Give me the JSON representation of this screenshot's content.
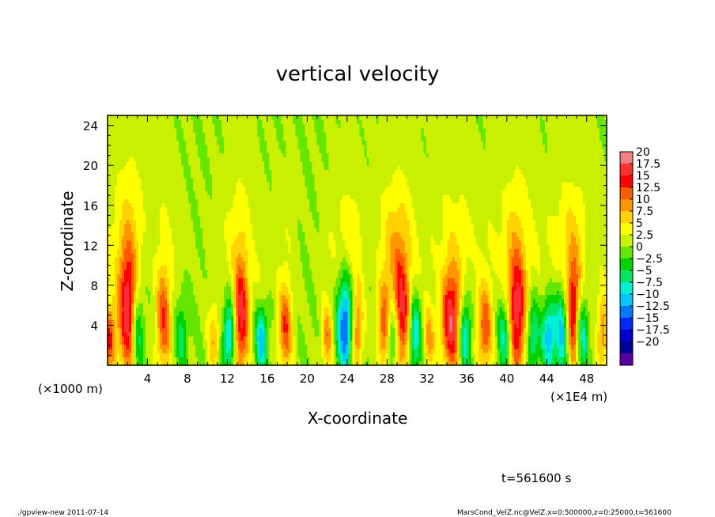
{
  "chart_data": {
    "type": "heatmap",
    "title": "vertical velocity",
    "xlabel": "X-coordinate",
    "ylabel": "Z-coordinate",
    "x_unit_left": "(×1000 m)",
    "x_unit_right": "(×1E4 m)",
    "xlim": [
      0,
      50
    ],
    "ylim": [
      0,
      25
    ],
    "x_ticks": [
      4,
      8,
      12,
      16,
      20,
      24,
      28,
      32,
      36,
      40,
      44,
      48
    ],
    "y_ticks": [
      4,
      8,
      12,
      16,
      20,
      24
    ],
    "x_tick_labels": [
      "4",
      "8",
      "12",
      "16",
      "20",
      "24",
      "28",
      "32",
      "36",
      "40",
      "44",
      "48"
    ],
    "y_tick_labels": [
      "4",
      "8",
      "12",
      "16",
      "20",
      "24"
    ],
    "colorbar": {
      "levels": [
        20,
        17.5,
        15,
        12.5,
        10,
        7.5,
        5,
        2.5,
        0,
        -2.5,
        -5,
        -7.5,
        -10,
        -12.5,
        -15,
        -17.5,
        -20
      ],
      "labels": [
        "20",
        "17.5",
        "15",
        "12.5",
        "10",
        "7.5",
        "5",
        "2.5",
        "0",
        "−2.5",
        "−5",
        "−7.5",
        "−10",
        "−12.5",
        "−15",
        "−17.5",
        "−20"
      ],
      "colors": [
        "#f08080",
        "#ff3030",
        "#ff0000",
        "#ff5a00",
        "#ff9600",
        "#ffd200",
        "#ffff00",
        "#c8f000",
        "#64e600",
        "#00d200",
        "#00e664",
        "#00f0d2",
        "#00c8ff",
        "#0078ff",
        "#0028ff",
        "#0000d2",
        "#000096",
        "#5a00a0"
      ]
    },
    "columns": [
      {
        "x": 0.2,
        "w": 0.6,
        "amp": 12,
        "top": 6
      },
      {
        "x": 2.0,
        "w": 1.0,
        "amp": 17,
        "top": 13
      },
      {
        "x": 3.0,
        "w": 0.6,
        "amp": -9,
        "top": 8
      },
      {
        "x": 5.6,
        "w": 0.8,
        "amp": 12,
        "top": 10
      },
      {
        "x": 7.4,
        "w": 0.6,
        "amp": -6,
        "top": 7
      },
      {
        "x": 10.6,
        "w": 0.6,
        "amp": 7,
        "top": 6
      },
      {
        "x": 12.2,
        "w": 0.6,
        "amp": -12,
        "top": 7
      },
      {
        "x": 13.4,
        "w": 0.8,
        "amp": 16,
        "top": 11
      },
      {
        "x": 15.4,
        "w": 0.6,
        "amp": -12,
        "top": 6
      },
      {
        "x": 17.8,
        "w": 0.7,
        "amp": 12,
        "top": 8
      },
      {
        "x": 22.0,
        "w": 0.6,
        "amp": 9,
        "top": 6
      },
      {
        "x": 23.9,
        "w": 0.9,
        "amp": -17,
        "top": 9
      },
      {
        "x": 24.9,
        "w": 0.7,
        "amp": 13,
        "top": 8
      },
      {
        "x": 27.8,
        "w": 0.7,
        "amp": 14,
        "top": 8
      },
      {
        "x": 28.5,
        "w": 0.7,
        "amp": -13,
        "top": 7
      },
      {
        "x": 29.4,
        "w": 0.9,
        "amp": 16,
        "top": 12
      },
      {
        "x": 30.8,
        "w": 0.6,
        "amp": -11,
        "top": 7
      },
      {
        "x": 32.2,
        "w": 0.6,
        "amp": 8,
        "top": 6
      },
      {
        "x": 34.4,
        "w": 1.0,
        "amp": 17,
        "top": 10
      },
      {
        "x": 35.8,
        "w": 0.6,
        "amp": -11,
        "top": 7
      },
      {
        "x": 37.8,
        "w": 0.8,
        "amp": 12,
        "top": 8
      },
      {
        "x": 39.8,
        "w": 0.7,
        "amp": -10,
        "top": 7
      },
      {
        "x": 41.0,
        "w": 1.0,
        "amp": 17,
        "top": 12
      },
      {
        "x": 42.6,
        "w": 0.6,
        "amp": -9,
        "top": 7
      },
      {
        "x": 44.2,
        "w": 0.7,
        "amp": -12,
        "top": 7
      },
      {
        "x": 45.6,
        "w": 0.7,
        "amp": -13,
        "top": 8
      },
      {
        "x": 46.6,
        "w": 0.8,
        "amp": 16,
        "top": 11
      },
      {
        "x": 47.5,
        "w": 0.6,
        "amp": -11,
        "top": 7
      },
      {
        "x": 49.6,
        "w": 0.6,
        "amp": 9,
        "top": 7
      }
    ]
  },
  "time_label": "t=561600 s",
  "footer_left": "./gpview-new   2011-07-14",
  "footer_right": "MarsCond_VelZ.nc@VelZ,x=0:500000,z=0:25000,t=561600"
}
